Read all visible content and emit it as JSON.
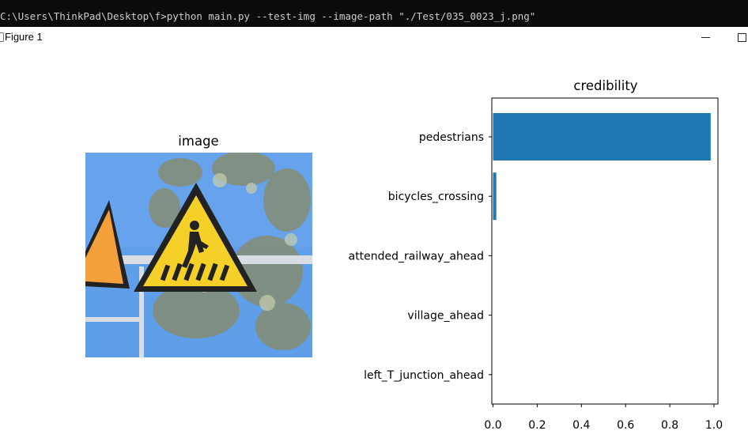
{
  "console": {
    "command": "C:\\Users\\ThinkPad\\Desktop\\f>python main.py --test-img --image-path \"./Test/035_0023_j.png\""
  },
  "window": {
    "title": "Figure 1"
  },
  "image_panel": {
    "title": "image"
  },
  "colors": {
    "bar": "#1f77b4",
    "sky": "#5f9ee8",
    "sign_yellow": "#f5d028",
    "sign_orange": "#f3a03a"
  },
  "chart_data": {
    "type": "bar",
    "orientation": "horizontal",
    "title": "credibility",
    "categories": [
      "pedestrians",
      "bicycles_crossing",
      "attended_railway_ahead",
      "village_ahead",
      "left_T_junction_ahead"
    ],
    "values": [
      0.985,
      0.015,
      0.0,
      0.0,
      0.0
    ],
    "xlim": [
      0,
      1.0
    ],
    "xticks": [
      0.0,
      0.2,
      0.4,
      0.6,
      0.8,
      1.0
    ],
    "xtick_labels": [
      "0.0",
      "0.2",
      "0.4",
      "0.6",
      "0.8",
      "1.0"
    ],
    "bar_color": "#1f77b4",
    "grid": false
  }
}
